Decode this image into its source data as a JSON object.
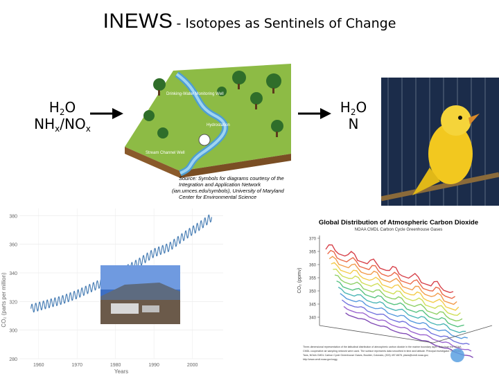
{
  "title": {
    "main": "INEWS",
    "sub": "- Isotopes as Sentinels of Change"
  },
  "left_label": {
    "line1_a": "H",
    "line1_sub": "2",
    "line1_b": "O",
    "line2_a": "NH",
    "line2_sub1": "x",
    "line2_b": "/NO",
    "line2_sub2": "x"
  },
  "right_label": {
    "line1_a": "H",
    "line1_sub": "2",
    "line1_b": "O",
    "line2": "N"
  },
  "watershed": {
    "labels": [
      "Drinking-Water Monitoring Well",
      "Hydrostation",
      "Stream Channel Well"
    ],
    "source": [
      "Source: Symbols for diagrams courtesy of the",
      "Integration and Application Network",
      "(ian.umces.edu/symbols), University of Maryland",
      "Center for Environmental Science"
    ]
  },
  "co2_chart": {
    "y_ticks": [
      "380",
      "360",
      "340",
      "320",
      "300",
      "280"
    ],
    "x_ticks": [
      "1960",
      "1970",
      "1980",
      "1990",
      "2000"
    ],
    "xlabel": "Years",
    "ylabel": "CO₂ (parts per million)"
  },
  "chart_data": {
    "type": "line",
    "x": [
      1958,
      1962,
      1966,
      1970,
      1974,
      1978,
      1982,
      1986,
      1990,
      1994,
      1998,
      2002,
      2005
    ],
    "series": [
      {
        "values": [
          315,
          318,
          321,
          325,
          330,
          335,
          341,
          347,
          354,
          358,
          366,
          373,
          379
        ]
      }
    ],
    "ylim": [
      280,
      385
    ],
    "xlim": [
      1955,
      2008
    ],
    "xlabel": "Years",
    "ylabel": "CO₂ (parts per million)"
  },
  "global_chart": {
    "title": "Global Distribution of Atmospheric Carbon Dioxide",
    "subtitle": "NOAA CMDL Carbon Cycle Greenhouse Gases",
    "y_ticks": [
      "370",
      "365",
      "360",
      "355",
      "350",
      "345",
      "340"
    ],
    "ylabel": "CO₂ (ppmv)",
    "caption": [
      "Three-dimensional representation of the latitudinal distribution of atmospheric carbon dioxide in the marine boundary layer. Data from the NOAA",
      "CMDL cooperative air sampling network were used. The surface represents data smoothed in time and latitude. Principal investigator: Dr. Pieter",
      "Tans, NOAA CMDL Carbon Cycle Greenhouse Gases, Boulder, Colorado, (303) 497-6678, ptans@cmdl.noaa.gov,",
      "http://www.cmdl.noaa.gov/ccgg"
    ]
  },
  "colors": {
    "accent_arrow": "#000000",
    "canary": "#f2c81f",
    "cage_bg": "#1b2c4a"
  }
}
